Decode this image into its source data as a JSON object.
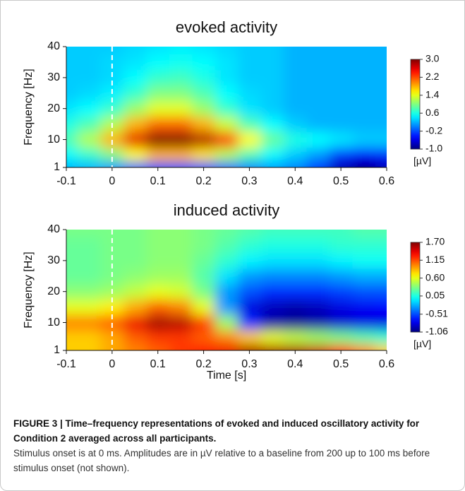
{
  "chart_data": [
    {
      "type": "heatmap",
      "title": "evoked activity",
      "y_label": "Frequency [Hz]",
      "colormap": "jet",
      "vline": 0,
      "x": [
        -0.1,
        -0.05,
        0,
        0.05,
        0.1,
        0.15,
        0.2,
        0.25,
        0.3,
        0.35,
        0.4,
        0.45,
        0.5,
        0.55,
        0.6
      ],
      "y": [
        1,
        5,
        10,
        15,
        20,
        25,
        30,
        35,
        40
      ],
      "z": [
        [
          0.2,
          0.2,
          0.1,
          -0.1,
          -0.2,
          -0.2,
          -0.2,
          -0.1,
          0.0,
          0.1,
          0.0,
          -0.3,
          -0.8,
          -1.0,
          -0.8
        ],
        [
          0.5,
          0.7,
          1.0,
          1.5,
          1.8,
          1.8,
          1.6,
          1.2,
          0.8,
          0.5,
          0.3,
          0.1,
          -0.3,
          -0.5,
          -0.4
        ],
        [
          0.8,
          1.2,
          1.8,
          2.6,
          3.0,
          3.0,
          2.8,
          2.3,
          1.5,
          0.9,
          0.6,
          0.5,
          0.4,
          0.3,
          0.3
        ],
        [
          0.6,
          0.8,
          1.2,
          1.8,
          2.1,
          2.1,
          1.8,
          1.3,
          0.8,
          0.5,
          0.3,
          0.2,
          0.2,
          0.2,
          0.2
        ],
        [
          0.4,
          0.5,
          0.7,
          1.1,
          1.4,
          1.4,
          1.1,
          0.7,
          0.4,
          0.3,
          0.2,
          0.2,
          0.2,
          0.2,
          0.2
        ],
        [
          0.3,
          0.35,
          0.45,
          0.7,
          1.0,
          1.0,
          0.8,
          0.5,
          0.35,
          0.3,
          0.2,
          0.2,
          0.2,
          0.2,
          0.2
        ],
        [
          0.3,
          0.3,
          0.35,
          0.5,
          0.7,
          0.75,
          0.6,
          0.4,
          0.3,
          0.3,
          0.2,
          0.2,
          0.2,
          0.2,
          0.2
        ],
        [
          0.3,
          0.3,
          0.35,
          0.4,
          0.5,
          0.55,
          0.5,
          0.4,
          0.3,
          0.3,
          0.2,
          0.2,
          0.2,
          0.2,
          0.2
        ],
        [
          0.3,
          0.3,
          0.3,
          0.35,
          0.4,
          0.45,
          0.4,
          0.35,
          0.3,
          0.3,
          0.2,
          0.2,
          0.2,
          0.2,
          0.2
        ]
      ],
      "xlim": [
        -0.1,
        0.6
      ],
      "xticks": [
        -0.1,
        0,
        0.1,
        0.2,
        0.3,
        0.4,
        0.5,
        0.6
      ],
      "ylim": [
        1,
        40
      ],
      "yticks": [
        1,
        10,
        20,
        30,
        40
      ],
      "colorbar": {
        "zlim": [
          -1,
          3
        ],
        "ticks": [
          {
            "value": 3,
            "label": "3.0"
          },
          2.2,
          1.4,
          0.6,
          -0.2,
          {
            "value": -1,
            "label": "-1.0"
          }
        ],
        "label": "[µV]"
      }
    },
    {
      "type": "heatmap",
      "title": "induced activity",
      "y_label": "Frequency [Hz]",
      "x_label": "Time [s]",
      "colormap": "jet",
      "vline": 0,
      "x": [
        -0.1,
        -0.05,
        0,
        0.05,
        0.1,
        0.15,
        0.2,
        0.25,
        0.3,
        0.35,
        0.4,
        0.45,
        0.5,
        0.55,
        0.6
      ],
      "y": [
        1,
        5,
        10,
        15,
        20,
        25,
        30,
        35,
        40
      ],
      "z": [
        [
          0.8,
          0.8,
          0.9,
          1.0,
          1.1,
          1.2,
          1.3,
          1.4,
          1.6,
          1.6,
          1.6,
          1.5,
          1.3,
          1.0,
          0.8
        ],
        [
          0.8,
          0.8,
          0.9,
          1.1,
          1.2,
          1.2,
          1.1,
          1.0,
          0.8,
          0.6,
          0.5,
          0.4,
          0.3,
          0.2,
          0.1
        ],
        [
          1.0,
          1.0,
          1.1,
          1.4,
          1.6,
          1.55,
          1.2,
          0.4,
          -0.6,
          -0.95,
          -1.0,
          -0.95,
          -0.85,
          -0.8,
          -0.8
        ],
        [
          0.6,
          0.6,
          0.7,
          0.9,
          1.1,
          1.0,
          0.6,
          -0.3,
          -0.8,
          -0.9,
          -0.95,
          -0.9,
          -0.8,
          -0.75,
          -0.7
        ],
        [
          0.35,
          0.35,
          0.4,
          0.5,
          0.6,
          0.55,
          0.3,
          -0.3,
          -0.5,
          -0.6,
          -0.6,
          -0.6,
          -0.55,
          -0.5,
          -0.5
        ],
        [
          0.25,
          0.25,
          0.3,
          0.35,
          0.4,
          0.4,
          0.2,
          -0.1,
          -0.3,
          -0.35,
          -0.35,
          -0.35,
          -0.3,
          -0.25,
          -0.25
        ],
        [
          0.25,
          0.25,
          0.3,
          0.3,
          0.35,
          0.35,
          0.25,
          0.1,
          -0.05,
          -0.1,
          -0.1,
          -0.1,
          -0.05,
          0.0,
          0.0
        ],
        [
          0.25,
          0.25,
          0.3,
          0.3,
          0.35,
          0.35,
          0.3,
          0.2,
          0.1,
          0.05,
          0.05,
          0.05,
          0.1,
          0.1,
          0.1
        ],
        [
          0.3,
          0.3,
          0.3,
          0.3,
          0.35,
          0.35,
          0.3,
          0.25,
          0.2,
          0.15,
          0.15,
          0.15,
          0.15,
          0.2,
          0.2
        ]
      ],
      "xlim": [
        -0.1,
        0.6
      ],
      "xticks": [
        -0.1,
        0,
        0.1,
        0.2,
        0.3,
        0.4,
        0.5,
        0.6
      ],
      "ylim": [
        1,
        40
      ],
      "yticks": [
        1,
        10,
        20,
        30,
        40
      ],
      "colorbar": {
        "zlim": [
          -1.06,
          1.7
        ],
        "ticks": [
          {
            "value": 1.7,
            "label": "1.70"
          },
          1.15,
          {
            "value": 0.6,
            "label": "0.60"
          },
          0.05,
          -0.51,
          -1.06
        ],
        "label": "[µV]"
      }
    }
  ],
  "caption": {
    "title": "FIGURE 3 | Time–frequency representations of evoked and induced oscillatory activity for Condition 2 averaged across all participants.",
    "text": "Stimulus onset is at 0 ms. Amplitudes are in µV relative to a baseline from 200 up to 100 ms before stimulus onset (not shown)."
  }
}
